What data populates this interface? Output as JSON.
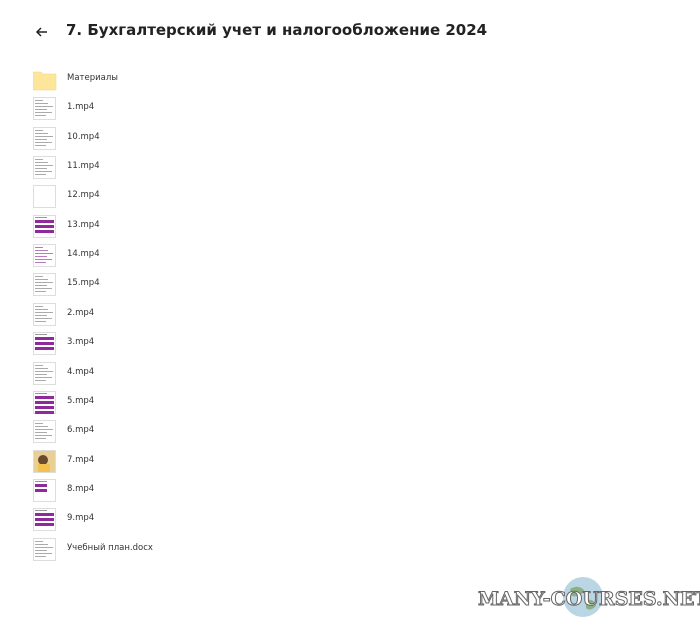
{
  "header": {
    "title": "7. Бухгалтерский учет и налогообложение 2024"
  },
  "files": [
    {
      "name": "Материалы"
    },
    {
      "name": "1.mp4"
    },
    {
      "name": "10.mp4"
    },
    {
      "name": "11.mp4"
    },
    {
      "name": "12.mp4"
    },
    {
      "name": "13.mp4"
    },
    {
      "name": "14.mp4"
    },
    {
      "name": "15.mp4"
    },
    {
      "name": "2.mp4"
    },
    {
      "name": "3.mp4"
    },
    {
      "name": "4.mp4"
    },
    {
      "name": "5.mp4"
    },
    {
      "name": "6.mp4"
    },
    {
      "name": "7.mp4"
    },
    {
      "name": "8.mp4"
    },
    {
      "name": "9.mp4"
    },
    {
      "name": "Учебный план.docx"
    }
  ],
  "watermark": {
    "text": "MANY-COURSES.NET"
  }
}
